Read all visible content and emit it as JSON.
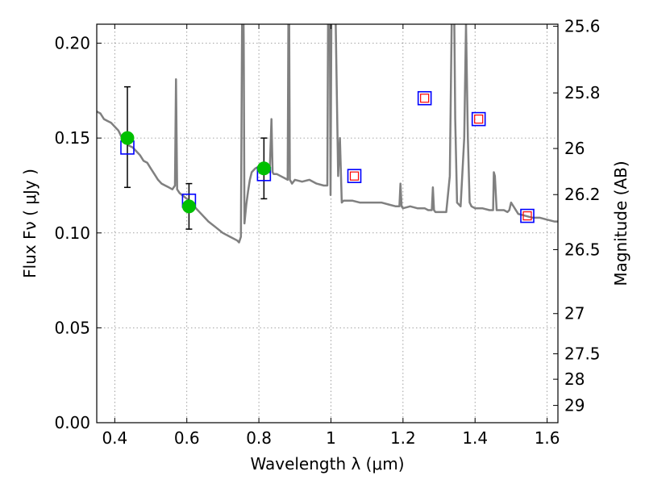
{
  "chart_data": {
    "type": "line",
    "xlabel": "Wavelength  λ (μm)",
    "ylabel": "Flux  Fν  ( μJy )",
    "ylabel_right": "Magnitude (AB)",
    "xlim": [
      0.35,
      1.63
    ],
    "ylim": [
      0.0,
      0.21
    ],
    "grid": true,
    "x_ticks": [
      0.4,
      0.6,
      0.8,
      1.0,
      1.2,
      1.4,
      1.6
    ],
    "x_tick_labels": [
      "0.4",
      "0.6",
      "0.8",
      "1",
      "1.2",
      "1.4",
      "1.6"
    ],
    "y_ticks": [
      0.0,
      0.05,
      0.1,
      0.15,
      0.2
    ],
    "y_tick_labels": [
      "0.00",
      "0.05",
      "0.10",
      "0.15",
      "0.20"
    ],
    "right_ticks": [
      {
        "label": "25.6",
        "flux": 0.2089
      },
      {
        "label": "25.8",
        "flux": 0.1738
      },
      {
        "label": "26",
        "flux": 0.1445
      },
      {
        "label": "26.2",
        "flux": 0.1202
      },
      {
        "label": "26.5",
        "flux": 0.0912
      },
      {
        "label": "27",
        "flux": 0.0575
      },
      {
        "label": "27.5",
        "flux": 0.0363
      },
      {
        "label": "28",
        "flux": 0.0229
      },
      {
        "label": "29",
        "flux": 0.0091
      }
    ],
    "series": [
      {
        "kind": "model-spectrum",
        "color": "#808080",
        "x": [
          0.35,
          0.36,
          0.37,
          0.38,
          0.39,
          0.4,
          0.41,
          0.42,
          0.43,
          0.44,
          0.45,
          0.46,
          0.47,
          0.48,
          0.49,
          0.5,
          0.51,
          0.52,
          0.53,
          0.54,
          0.55,
          0.56,
          0.567,
          0.57,
          0.573,
          0.58,
          0.6,
          0.62,
          0.64,
          0.66,
          0.68,
          0.7,
          0.72,
          0.74,
          0.745,
          0.75,
          0.753,
          0.755,
          0.758,
          0.76,
          0.765,
          0.77,
          0.775,
          0.78,
          0.79,
          0.8,
          0.81,
          0.82,
          0.83,
          0.835,
          0.838,
          0.841,
          0.85,
          0.86,
          0.87,
          0.88,
          0.883,
          0.886,
          0.889,
          0.892,
          0.9,
          0.92,
          0.94,
          0.96,
          0.98,
          0.99,
          0.993,
          0.996,
          0.999,
          1.002,
          1.01,
          1.02,
          1.025,
          1.03,
          1.035,
          1.04,
          1.06,
          1.08,
          1.1,
          1.12,
          1.14,
          1.16,
          1.18,
          1.19,
          1.193,
          1.196,
          1.2,
          1.22,
          1.24,
          1.26,
          1.27,
          1.28,
          1.283,
          1.286,
          1.29,
          1.3,
          1.32,
          1.33,
          1.335,
          1.34,
          1.345,
          1.35,
          1.36,
          1.37,
          1.375,
          1.38,
          1.385,
          1.39,
          1.4,
          1.42,
          1.44,
          1.45,
          1.452,
          1.455,
          1.46,
          1.48,
          1.49,
          1.495,
          1.5,
          1.52,
          1.54,
          1.56,
          1.58,
          1.6,
          1.62,
          1.63
        ],
        "y": [
          0.164,
          0.163,
          0.16,
          0.159,
          0.158,
          0.156,
          0.154,
          0.15,
          0.148,
          0.146,
          0.145,
          0.143,
          0.141,
          0.138,
          0.137,
          0.134,
          0.131,
          0.128,
          0.126,
          0.125,
          0.124,
          0.123,
          0.125,
          0.181,
          0.123,
          0.121,
          0.118,
          0.114,
          0.11,
          0.106,
          0.103,
          0.1,
          0.098,
          0.096,
          0.095,
          0.098,
          0.2,
          0.26,
          0.2,
          0.105,
          0.115,
          0.122,
          0.128,
          0.132,
          0.134,
          0.135,
          0.134,
          0.133,
          0.132,
          0.16,
          0.132,
          0.131,
          0.131,
          0.13,
          0.129,
          0.128,
          0.26,
          0.128,
          0.127,
          0.126,
          0.128,
          0.127,
          0.128,
          0.126,
          0.125,
          0.125,
          0.25,
          0.25,
          0.12,
          0.25,
          0.25,
          0.13,
          0.15,
          0.116,
          0.117,
          0.117,
          0.117,
          0.116,
          0.116,
          0.116,
          0.116,
          0.115,
          0.114,
          0.114,
          0.126,
          0.114,
          0.113,
          0.114,
          0.113,
          0.113,
          0.112,
          0.112,
          0.124,
          0.112,
          0.111,
          0.111,
          0.111,
          0.13,
          0.21,
          0.26,
          0.16,
          0.116,
          0.114,
          0.15,
          0.21,
          0.15,
          0.116,
          0.114,
          0.113,
          0.113,
          0.112,
          0.112,
          0.132,
          0.13,
          0.112,
          0.112,
          0.111,
          0.112,
          0.116,
          0.11,
          0.109,
          0.108,
          0.108,
          0.107,
          0.106,
          0.106
        ],
        "note": "pure spectrum line, y clipped at axis top"
      }
    ],
    "measurements": [
      {
        "x": 0.435,
        "y": 0.15,
        "yerr_low": 0.124,
        "yerr_high": 0.177,
        "color": "#00c000"
      },
      {
        "x": 0.606,
        "y": 0.114,
        "yerr_low": 0.102,
        "yerr_high": 0.126,
        "color": "#00c000"
      },
      {
        "x": 0.814,
        "y": 0.134,
        "yerr_low": 0.118,
        "yerr_high": 0.15,
        "color": "#00c000"
      }
    ],
    "model_bandpass_points": [
      {
        "x": 0.435,
        "y": 0.145,
        "style": "blue-square"
      },
      {
        "x": 0.606,
        "y": 0.117,
        "style": "blue-square"
      },
      {
        "x": 0.814,
        "y": 0.131,
        "style": "blue-square"
      },
      {
        "x": 1.065,
        "y": 0.13,
        "style": "blue-red-square"
      },
      {
        "x": 1.26,
        "y": 0.171,
        "style": "blue-red-square"
      },
      {
        "x": 1.41,
        "y": 0.16,
        "style": "blue-red-square"
      },
      {
        "x": 1.545,
        "y": 0.109,
        "style": "blue-red-square"
      }
    ],
    "colors": {
      "spectrum": "#808080",
      "measurement": "#00c000",
      "square_outer": "#0000ff",
      "square_inner": "#ff0000",
      "grid": "#888888"
    }
  }
}
